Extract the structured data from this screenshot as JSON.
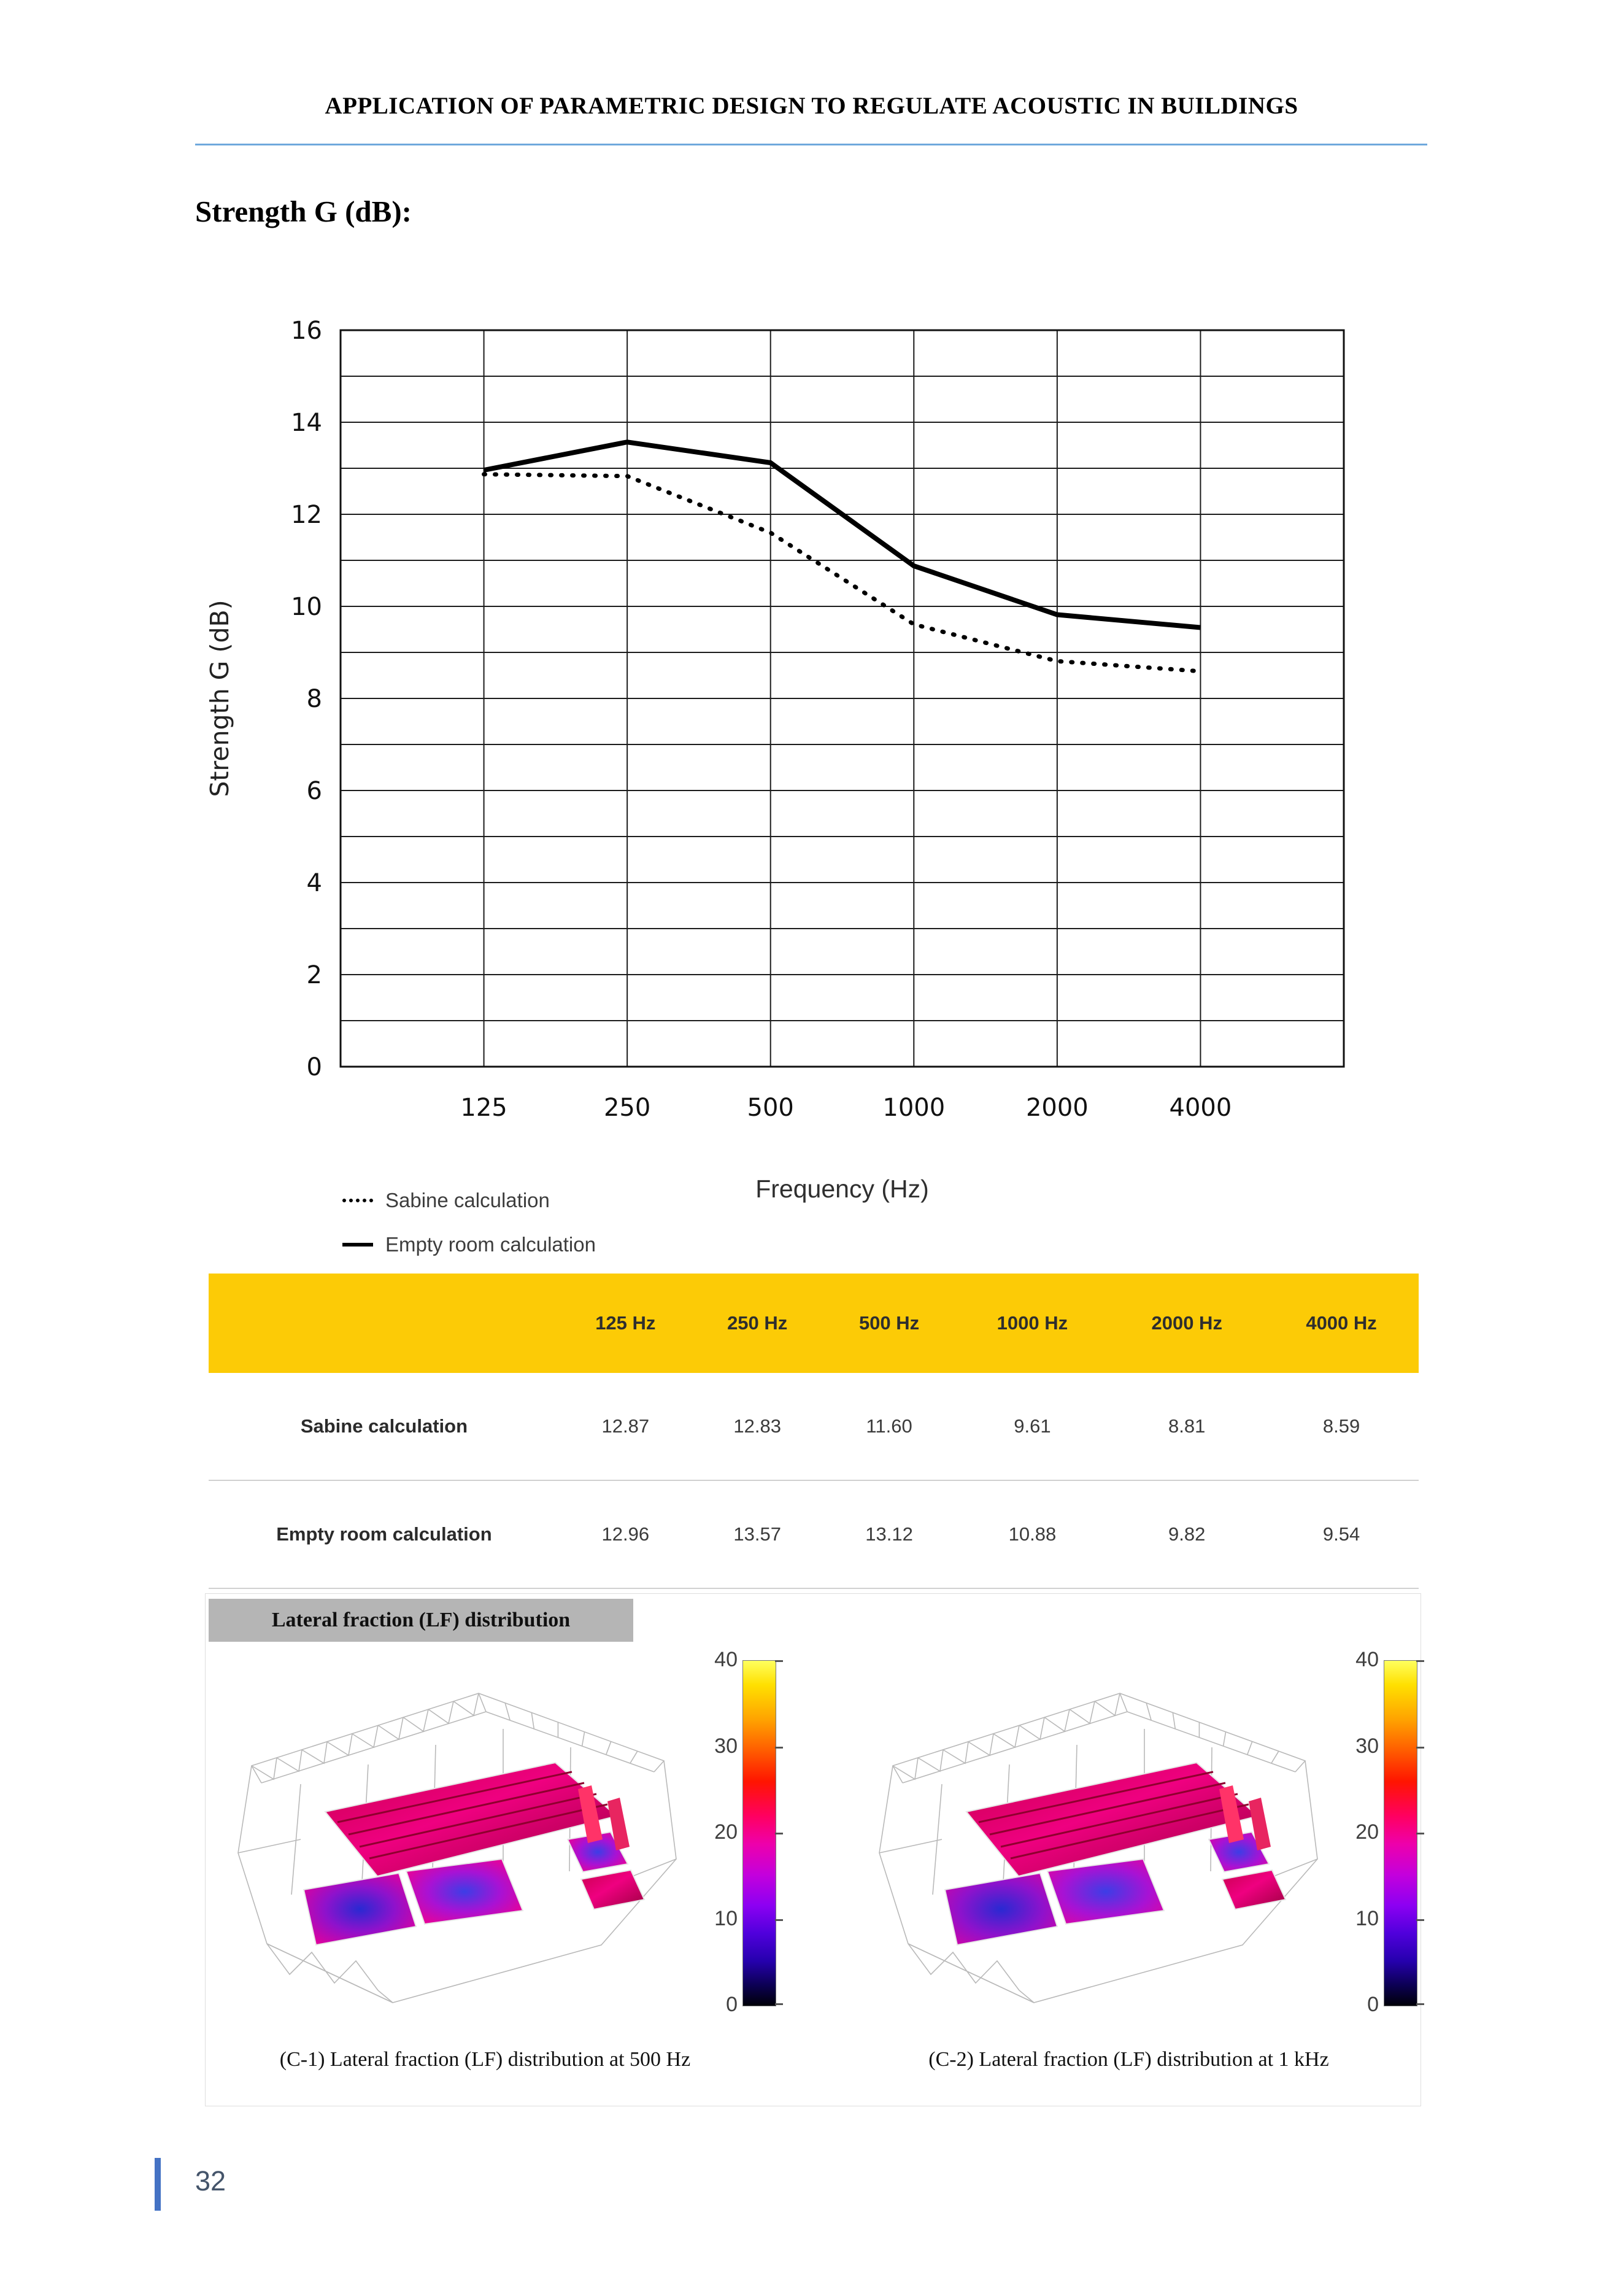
{
  "page": {
    "header_title": "APPLICATION OF PARAMETRIC DESIGN TO REGULATE ACOUSTIC IN BUILDINGS",
    "section_heading": "Strength G (dB):",
    "page_number": "32"
  },
  "colors": {
    "header_rule": "#6FA8DC",
    "footer_bar": "#4472C4",
    "lf_title_bg": "#B5B5B5"
  },
  "chart_data": {
    "type": "line",
    "x_categories": [
      "125",
      "250",
      "500",
      "1000",
      "2000",
      "4000"
    ],
    "series": [
      {
        "name": "Sabine calculation",
        "style": "dotted",
        "values": [
          12.87,
          12.83,
          11.6,
          9.61,
          8.81,
          8.59
        ]
      },
      {
        "name": "Empty room calculation",
        "style": "solid",
        "values": [
          12.96,
          13.57,
          13.12,
          10.88,
          9.82,
          9.54
        ]
      }
    ],
    "title": "",
    "xlabel": "Frequency (Hz)",
    "ylabel": "Strength G (dB)",
    "ylim": [
      0,
      16
    ],
    "y_major_ticks": [
      16,
      14,
      12,
      10,
      8,
      6,
      4,
      2,
      0
    ],
    "y_minor_step": 1,
    "grid": true,
    "legend_position": "bottom-left"
  },
  "table": {
    "header": [
      "",
      "125 Hz",
      "250 Hz",
      "500 Hz",
      "1000 Hz",
      "2000 Hz",
      "4000 Hz"
    ],
    "header_bg": "#FCCB06",
    "rows": [
      {
        "label": "Sabine calculation",
        "values": [
          "12.87",
          "12.83",
          "11.60",
          "9.61",
          "8.81",
          "8.59"
        ]
      },
      {
        "label": "Empty room calculation",
        "values": [
          "12.96",
          "13.57",
          "13.12",
          "10.88",
          "9.82",
          "9.54"
        ]
      }
    ]
  },
  "lf_section": {
    "title": "Lateral fraction (LF) distribution",
    "colorbar_ticks": [
      "40",
      "30",
      "20",
      "10",
      "0"
    ],
    "captions": [
      "(C-1) Lateral fraction (LF) distribution at 500 Hz",
      "(C-2) Lateral fraction (LF) distribution at 1 kHz"
    ]
  }
}
